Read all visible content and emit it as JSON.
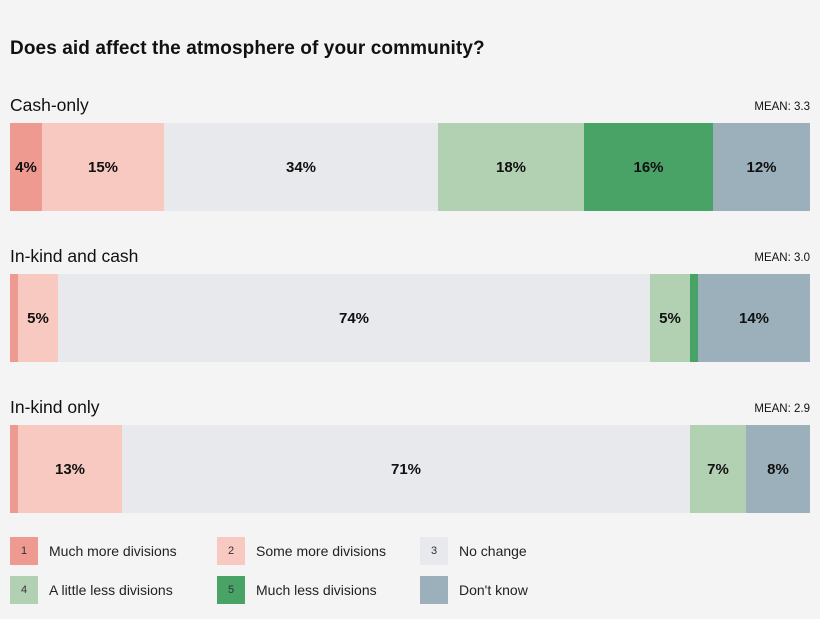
{
  "title": "Does aid affect the atmosphere of your community?",
  "colors": {
    "1": "#ee9a90",
    "2": "#f7c9c0",
    "3": "#e7e9ed",
    "4": "#b2d1b2",
    "5": "#4aa366",
    "dk": "#9cb0bb"
  },
  "legend": [
    {
      "key": "1",
      "num": "1",
      "label": "Much more divisions"
    },
    {
      "key": "2",
      "num": "2",
      "label": "Some more divisions"
    },
    {
      "key": "3",
      "num": "3",
      "label": "No change"
    },
    {
      "key": "4",
      "num": "4",
      "label": "A little less divisions"
    },
    {
      "key": "5",
      "num": "5",
      "label": "Much less divisions"
    },
    {
      "key": "dk",
      "num": "",
      "label": "Don't know"
    }
  ],
  "chart_data": {
    "type": "bar",
    "stacked": true,
    "orientation": "horizontal",
    "unit": "%",
    "categories": [
      "Cash-only",
      "In-kind and cash",
      "In-kind only"
    ],
    "means": [
      "MEAN: 3.3",
      "MEAN: 3.0",
      "MEAN: 2.9"
    ],
    "series": [
      {
        "name": "Much more divisions",
        "key": "1",
        "values": [
          4,
          1,
          1
        ],
        "labels": [
          "4%",
          "",
          ""
        ]
      },
      {
        "name": "Some more divisions",
        "key": "2",
        "values": [
          15,
          5,
          13
        ],
        "labels": [
          "15%",
          "5%",
          "13%"
        ]
      },
      {
        "name": "No change",
        "key": "3",
        "values": [
          34,
          74,
          71
        ],
        "labels": [
          "34%",
          "74%",
          "71%"
        ]
      },
      {
        "name": "A little less divisions",
        "key": "4",
        "values": [
          18,
          5,
          7
        ],
        "labels": [
          "18%",
          "5%",
          "7%"
        ]
      },
      {
        "name": "Much less divisions",
        "key": "5",
        "values": [
          16,
          1,
          0
        ],
        "labels": [
          "16%",
          "",
          ""
        ]
      },
      {
        "name": "Don't know",
        "key": "dk",
        "values": [
          12,
          14,
          8
        ],
        "labels": [
          "12%",
          "14%",
          "8%"
        ]
      }
    ]
  }
}
